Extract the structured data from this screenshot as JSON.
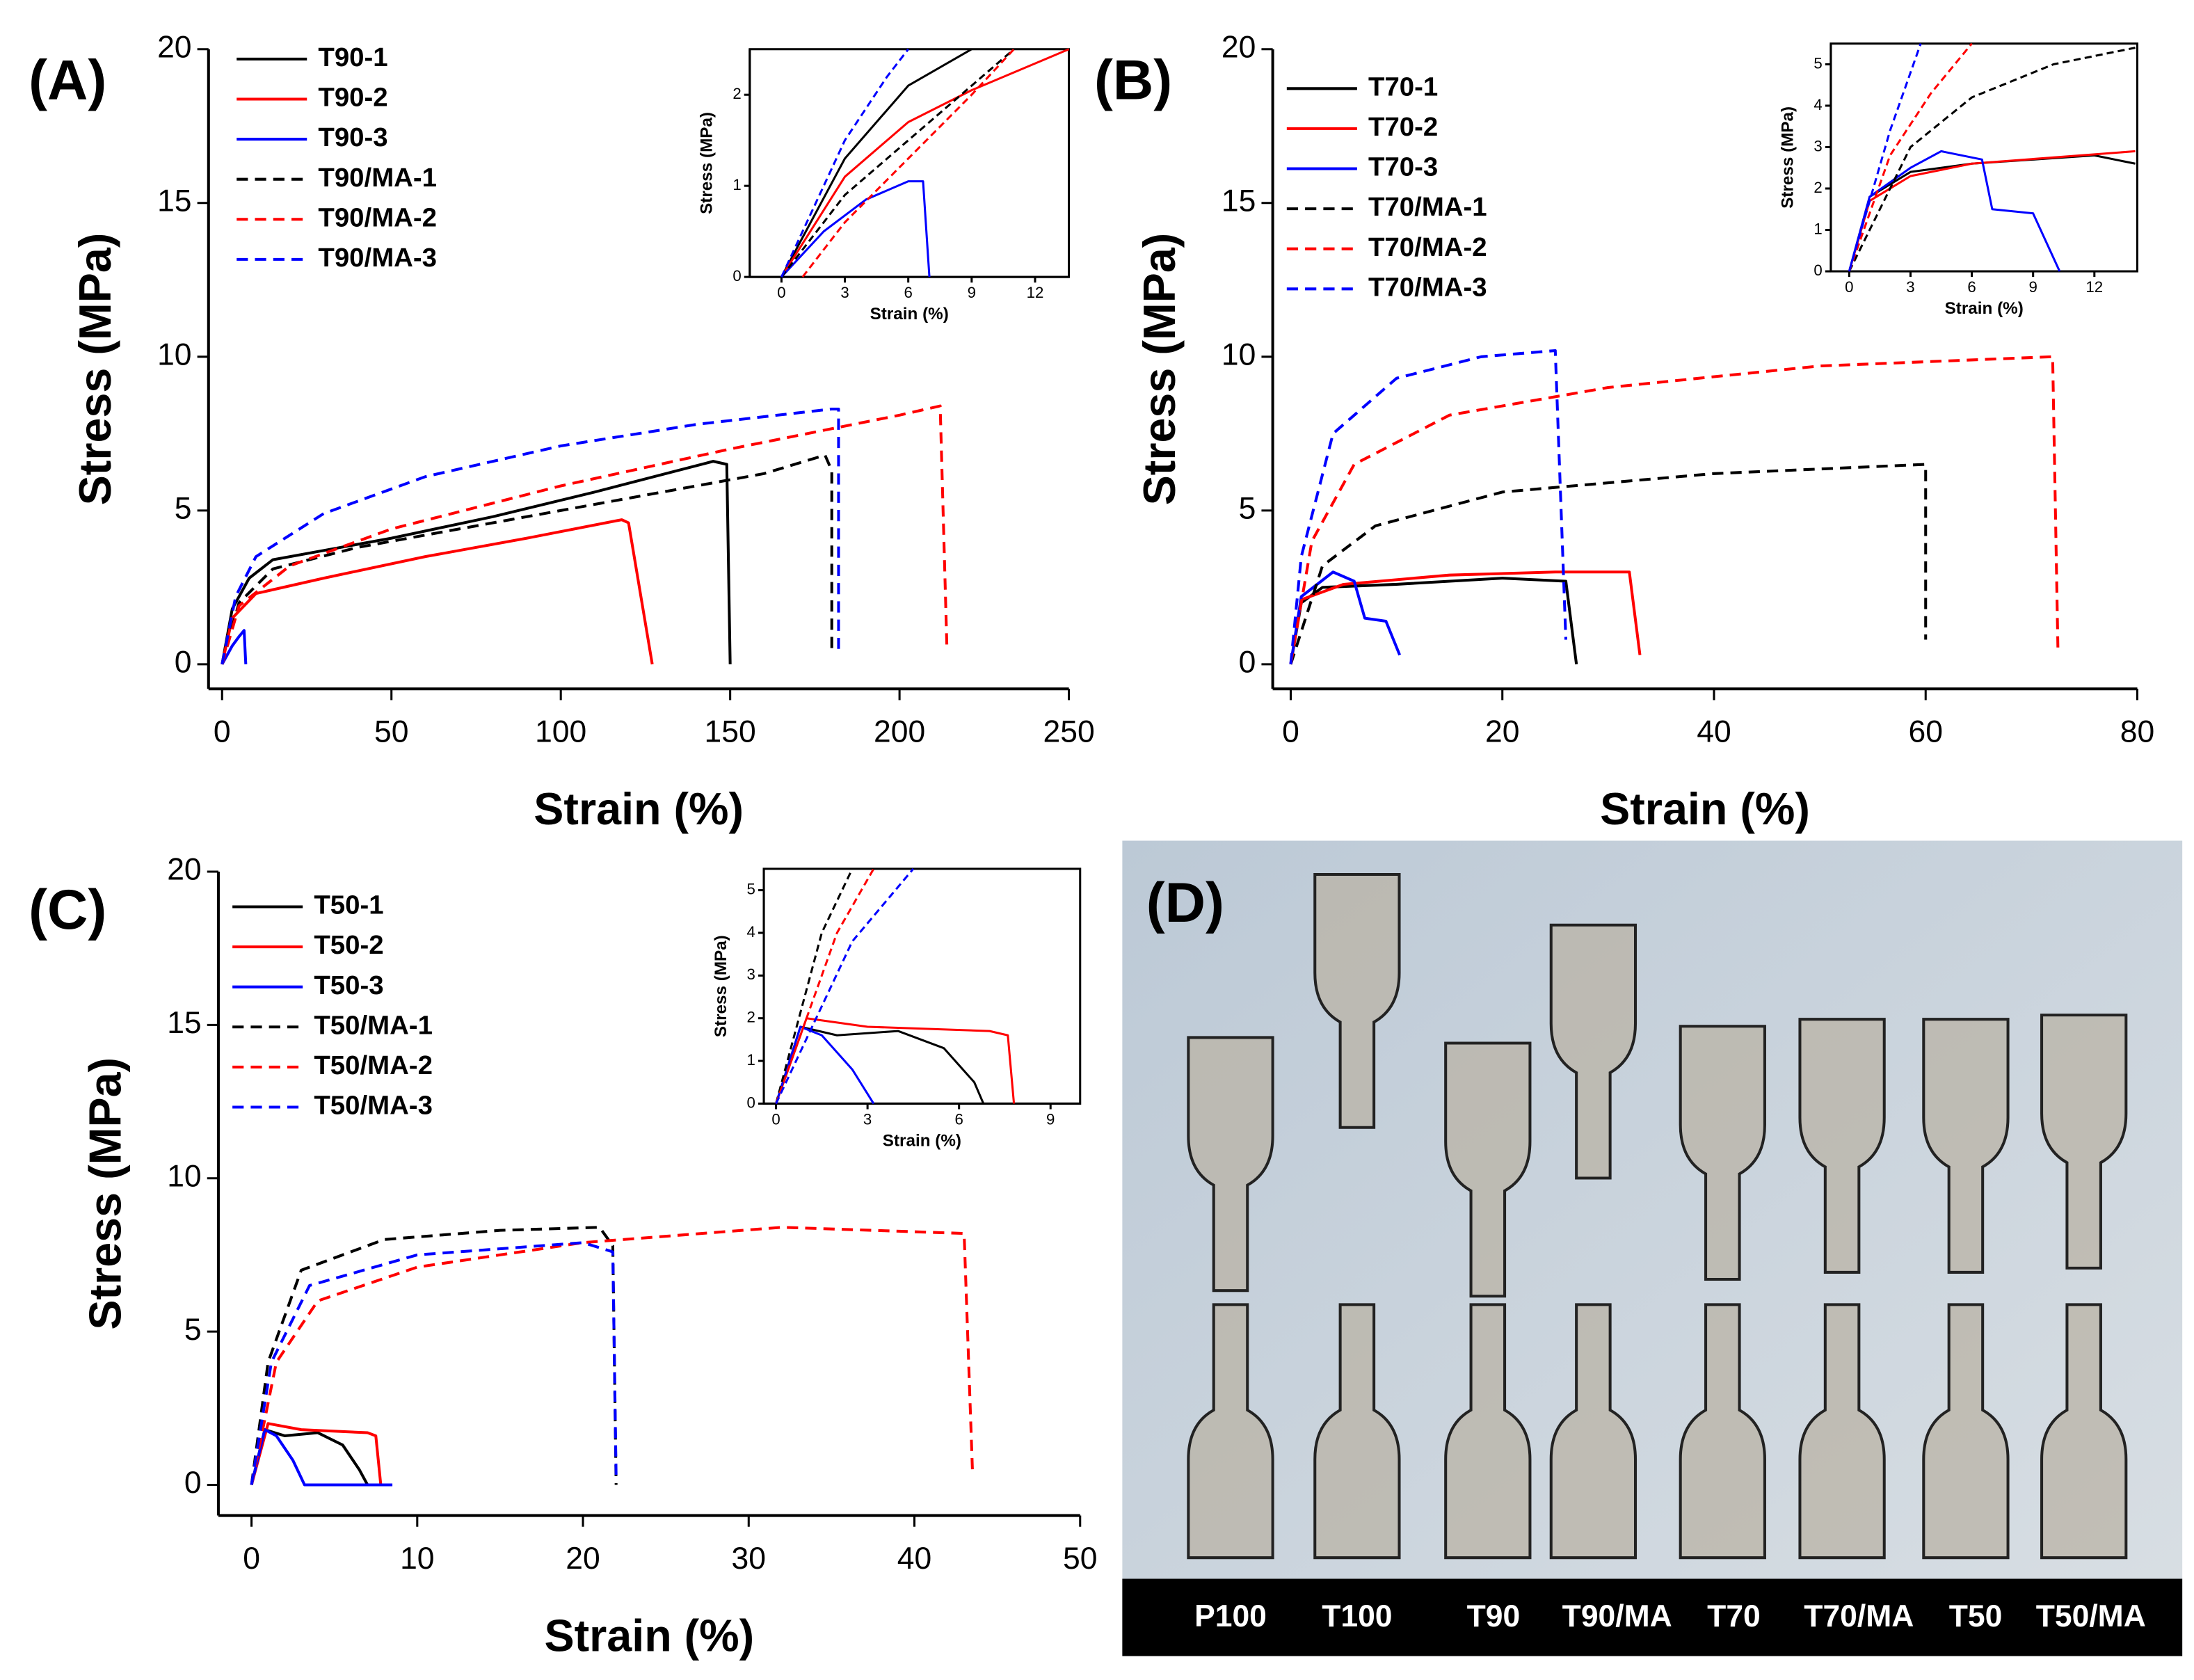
{
  "chart_data": [
    {
      "type": "line",
      "label": "(A)",
      "x_label": "Strain (%)",
      "y_label": "Stress (MPa)",
      "xlim": [
        -4,
        250
      ],
      "ylim": [
        -0.8,
        20
      ],
      "xticks": [
        0,
        50,
        100,
        150,
        200,
        250
      ],
      "yticks": [
        0,
        5,
        10,
        15,
        20
      ],
      "legend": "upper left",
      "series": [
        {
          "name": "T90-1",
          "color": "#000000",
          "style": "solid",
          "x": [
            0,
            3,
            8,
            15,
            30,
            50,
            80,
            110,
            145,
            149,
            150
          ],
          "values": [
            0,
            1.8,
            2.8,
            3.4,
            3.7,
            4.1,
            4.8,
            5.6,
            6.6,
            6.5,
            0
          ]
        },
        {
          "name": "T90-2",
          "color": "#ff0000",
          "style": "solid",
          "x": [
            0,
            3,
            10,
            30,
            60,
            90,
            118,
            120,
            127
          ],
          "values": [
            0,
            1.5,
            2.3,
            2.8,
            3.5,
            4.1,
            4.7,
            4.6,
            0
          ]
        },
        {
          "name": "T90-3",
          "color": "#0000ff",
          "style": "solid",
          "x": [
            0,
            3,
            5,
            6.5,
            7
          ],
          "values": [
            0,
            0.6,
            0.9,
            1.1,
            0
          ]
        },
        {
          "name": "T90/MA-1",
          "color": "#000000",
          "style": "dashed",
          "x": [
            0,
            5,
            15,
            40,
            80,
            120,
            160,
            178,
            180,
            180
          ],
          "values": [
            0,
            2,
            3.1,
            3.8,
            4.6,
            5.4,
            6.2,
            6.8,
            6.3,
            0.5
          ]
        },
        {
          "name": "T90/MA-2",
          "color": "#ff0000",
          "style": "dashed",
          "x": [
            0,
            5,
            20,
            50,
            100,
            150,
            200,
            212,
            214
          ],
          "values": [
            0,
            1.9,
            3.2,
            4.4,
            5.8,
            7,
            8.1,
            8.4,
            0.5
          ]
        },
        {
          "name": "T90/MA-3",
          "color": "#0000ff",
          "style": "dashed",
          "x": [
            0,
            4,
            10,
            30,
            60,
            100,
            140,
            180,
            182,
            182
          ],
          "values": [
            0,
            2.2,
            3.5,
            4.9,
            6.1,
            7.1,
            7.8,
            8.3,
            8.3,
            0.5
          ]
        }
      ]
    },
    {
      "type": "line",
      "x_label": "Strain (%)",
      "y_label": "Stress (MPa)",
      "xlim": [
        -1.5,
        13.6
      ],
      "ylim": [
        0,
        2.5
      ],
      "xticks": [
        0,
        3,
        6,
        9,
        12
      ],
      "yticks": [
        0,
        1,
        2
      ],
      "series": [
        {
          "color": "#000000",
          "style": "solid",
          "x": [
            0,
            3,
            6,
            9
          ],
          "values": [
            0,
            1.3,
            2.1,
            2.5
          ]
        },
        {
          "color": "#ff0000",
          "style": "solid",
          "x": [
            0,
            3,
            6,
            9,
            13.6
          ],
          "values": [
            0,
            1.1,
            1.7,
            2.05,
            2.5
          ]
        },
        {
          "color": "#0000ff",
          "style": "solid",
          "x": [
            0,
            2,
            4,
            6,
            6.7,
            7
          ],
          "values": [
            0,
            0.5,
            0.85,
            1.05,
            1.05,
            0
          ]
        },
        {
          "color": "#000000",
          "style": "dashed",
          "x": [
            0,
            3,
            6,
            9,
            11
          ],
          "values": [
            0,
            0.9,
            1.5,
            2.1,
            2.5
          ]
        },
        {
          "color": "#ff0000",
          "style": "dashed",
          "x": [
            1,
            3,
            6,
            9,
            11
          ],
          "values": [
            0,
            0.6,
            1.3,
            2,
            2.5
          ]
        },
        {
          "color": "#0000ff",
          "style": "dashed",
          "x": [
            0,
            3,
            5,
            6
          ],
          "values": [
            0,
            1.5,
            2.2,
            2.5
          ]
        }
      ]
    },
    {
      "type": "line",
      "label": "(B)",
      "x_label": "Strain (%)",
      "y_label": "Stress (MPa)",
      "xlim": [
        -1.7,
        80
      ],
      "ylim": [
        -0.8,
        20
      ],
      "xticks": [
        0,
        20,
        40,
        60,
        80
      ],
      "yticks": [
        0,
        5,
        10,
        15,
        20
      ],
      "legend": "upper left",
      "series": [
        {
          "name": "T70-1",
          "color": "#000000",
          "style": "solid",
          "x": [
            0,
            1,
            3,
            10,
            20,
            26,
            27
          ],
          "values": [
            0,
            2,
            2.5,
            2.6,
            2.8,
            2.7,
            0
          ]
        },
        {
          "name": "T70-2",
          "color": "#ff0000",
          "style": "solid",
          "x": [
            0,
            1,
            5,
            15,
            25,
            32,
            33
          ],
          "values": [
            0,
            2.1,
            2.6,
            2.9,
            3.0,
            3.0,
            0.3
          ]
        },
        {
          "name": "T70-3",
          "color": "#0000ff",
          "style": "solid",
          "x": [
            0,
            1,
            4,
            6,
            7,
            9,
            10.3
          ],
          "values": [
            0,
            2.2,
            3.0,
            2.7,
            1.5,
            1.4,
            0.3
          ]
        },
        {
          "name": "T70/MA-1",
          "color": "#000000",
          "style": "dashed",
          "x": [
            0,
            3,
            8,
            20,
            40,
            60,
            60
          ],
          "values": [
            0,
            3.2,
            4.5,
            5.6,
            6.2,
            6.5,
            0.8
          ]
        },
        {
          "name": "T70/MA-2",
          "color": "#ff0000",
          "style": "dashed",
          "x": [
            0,
            2,
            6,
            15,
            30,
            50,
            72,
            72.5
          ],
          "values": [
            0,
            4,
            6.5,
            8.1,
            9.0,
            9.7,
            10,
            0.5
          ]
        },
        {
          "name": "T70/MA-3",
          "color": "#0000ff",
          "style": "dashed",
          "x": [
            0,
            1,
            4,
            10,
            18,
            25,
            26
          ],
          "values": [
            0,
            3.5,
            7.5,
            9.3,
            10.0,
            10.2,
            0.8
          ]
        }
      ]
    },
    {
      "type": "line",
      "x_label": "Strain (%)",
      "y_label": "Stress (MPa)",
      "xlim": [
        -0.9,
        14.1
      ],
      "ylim": [
        0,
        5.5
      ],
      "xticks": [
        0,
        3,
        6,
        9,
        12
      ],
      "yticks": [
        0,
        1,
        2,
        3,
        4,
        5
      ],
      "series": [
        {
          "color": "#000000",
          "style": "solid",
          "x": [
            0,
            1,
            3,
            6,
            12,
            14
          ],
          "values": [
            0,
            1.8,
            2.4,
            2.6,
            2.8,
            2.6
          ]
        },
        {
          "color": "#ff0000",
          "style": "solid",
          "x": [
            0,
            1,
            3,
            6,
            14
          ],
          "values": [
            0,
            1.7,
            2.3,
            2.6,
            2.9
          ]
        },
        {
          "color": "#0000ff",
          "style": "solid",
          "x": [
            0,
            1,
            3,
            4.5,
            6.5,
            7,
            9,
            10.3
          ],
          "values": [
            0,
            1.8,
            2.5,
            2.9,
            2.7,
            1.5,
            1.4,
            0
          ]
        },
        {
          "color": "#000000",
          "style": "dashed",
          "x": [
            0,
            3,
            6,
            10,
            14
          ],
          "values": [
            0,
            3,
            4.2,
            5,
            5.4
          ]
        },
        {
          "color": "#ff0000",
          "style": "dashed",
          "x": [
            0,
            2,
            4,
            6
          ],
          "values": [
            0,
            2.8,
            4.3,
            5.5
          ]
        },
        {
          "color": "#0000ff",
          "style": "dashed",
          "x": [
            0,
            2,
            3.5
          ],
          "values": [
            0,
            3.4,
            5.5
          ]
        }
      ]
    },
    {
      "type": "line",
      "label": "(C)",
      "x_label": "Strain (%)",
      "y_label": "Stress (MPa)",
      "xlim": [
        -2,
        50
      ],
      "ylim": [
        -1,
        20
      ],
      "xticks": [
        0,
        10,
        20,
        30,
        40,
        50
      ],
      "yticks": [
        0,
        5,
        10,
        15,
        20
      ],
      "legend": "upper left",
      "series": [
        {
          "name": "T50-1",
          "color": "#000000",
          "style": "solid",
          "x": [
            0,
            0.8,
            2,
            4,
            5.5,
            6.5,
            7
          ],
          "values": [
            0,
            1.8,
            1.6,
            1.7,
            1.3,
            0.5,
            0
          ]
        },
        {
          "name": "T50-2",
          "color": "#ff0000",
          "style": "solid",
          "x": [
            0,
            1,
            3,
            7,
            7.5,
            7.8
          ],
          "values": [
            0,
            2,
            1.8,
            1.7,
            1.6,
            0
          ]
        },
        {
          "name": "T50-3",
          "color": "#0000ff",
          "style": "solid",
          "x": [
            0,
            0.8,
            1.5,
            2.5,
            3.2,
            8.5
          ],
          "values": [
            0,
            1.8,
            1.6,
            0.8,
            0,
            0
          ]
        },
        {
          "name": "T50/MA-1",
          "color": "#000000",
          "style": "dashed",
          "x": [
            0,
            1,
            3,
            8,
            15,
            21,
            21.8,
            22
          ],
          "values": [
            0,
            4,
            7,
            8,
            8.3,
            8.4,
            7.8,
            0
          ]
        },
        {
          "name": "T50/MA-2",
          "color": "#ff0000",
          "style": "dashed",
          "x": [
            0,
            1.5,
            4,
            10,
            20,
            32,
            43,
            43.5
          ],
          "values": [
            0,
            4,
            6,
            7.1,
            7.9,
            8.4,
            8.2,
            0.5
          ]
        },
        {
          "name": "T50/MA-3",
          "color": "#0000ff",
          "style": "dashed",
          "x": [
            0,
            1.2,
            3.5,
            10,
            20,
            21.8,
            22
          ],
          "values": [
            0,
            4,
            6.5,
            7.5,
            7.9,
            7.6,
            0.3
          ]
        }
      ]
    },
    {
      "type": "line",
      "x_label": "Strain (%)",
      "y_label": "Stress (MPa)",
      "xlim": [
        -0.4,
        9.97
      ],
      "ylim": [
        0,
        5.5
      ],
      "xticks": [
        0,
        3,
        6,
        9
      ],
      "yticks": [
        0,
        1,
        2,
        3,
        4,
        5
      ],
      "series": [
        {
          "color": "#000000",
          "style": "solid",
          "x": [
            0,
            0.8,
            2,
            4,
            5.5,
            6.5,
            6.8
          ],
          "values": [
            0,
            1.8,
            1.6,
            1.7,
            1.3,
            0.5,
            0
          ]
        },
        {
          "color": "#ff0000",
          "style": "solid",
          "x": [
            0,
            1,
            3,
            7,
            7.6,
            7.8
          ],
          "values": [
            0,
            2,
            1.8,
            1.7,
            1.6,
            0
          ]
        },
        {
          "color": "#0000ff",
          "style": "solid",
          "x": [
            0,
            0.8,
            1.5,
            2.5,
            3.2
          ],
          "values": [
            0,
            1.8,
            1.6,
            0.8,
            0
          ]
        },
        {
          "color": "#000000",
          "style": "dashed",
          "x": [
            0,
            1.5,
            2.5
          ],
          "values": [
            0,
            4,
            5.5
          ]
        },
        {
          "color": "#ff0000",
          "style": "dashed",
          "x": [
            0,
            2,
            3.2
          ],
          "values": [
            0,
            4,
            5.5
          ]
        },
        {
          "color": "#0000ff",
          "style": "dashed",
          "x": [
            0,
            2.5,
            4.5
          ],
          "values": [
            0,
            3.8,
            5.5
          ]
        }
      ]
    }
  ],
  "photo": {
    "label": "(D)",
    "captions": [
      "P100",
      "T100",
      "T90",
      "T90/MA",
      "T70",
      "T70/MA",
      "T50",
      "T50/MA"
    ]
  }
}
